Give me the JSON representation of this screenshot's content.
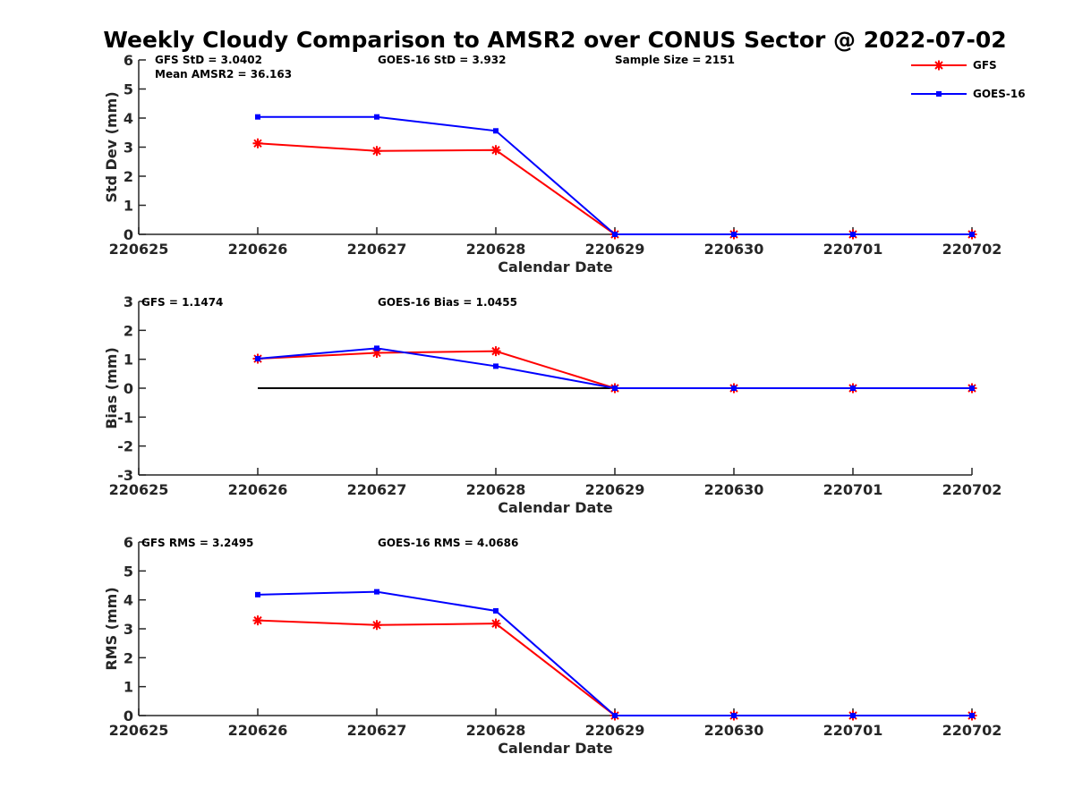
{
  "title": "Weekly Cloudy Comparison to AMSR2 over CONUS Sector @ 2022-07-02",
  "legend": {
    "placement": "top-right",
    "entries": [
      {
        "label": "GFS",
        "color": "#ff0000",
        "marker": "asterisk"
      },
      {
        "label": "GOES-16",
        "color": "#0000ff",
        "marker": "square"
      }
    ]
  },
  "chart_data": [
    {
      "type": "line",
      "x": [
        "220625",
        "220626",
        "220627",
        "220628",
        "220629",
        "220630",
        "220701",
        "220702"
      ],
      "xlabel": "Calendar Date",
      "ylabel": "Std Dev (mm)",
      "ylim": [
        0,
        6
      ],
      "yticks": [
        "0",
        "1",
        "2",
        "3",
        "4",
        "5",
        "6"
      ],
      "annotations": [
        "GFS StD = 3.0402",
        "GOES-16 StD = 3.932",
        "Sample Size = 2151",
        "Mean AMSR2 = 36.163"
      ],
      "series": [
        {
          "name": "GFS",
          "color": "#ff0000",
          "values": [
            null,
            3.13,
            2.87,
            2.9,
            0,
            0,
            0,
            0
          ]
        },
        {
          "name": "GOES-16",
          "color": "#0000ff",
          "values": [
            null,
            4.04,
            4.04,
            3.56,
            0,
            0,
            0,
            0
          ]
        }
      ]
    },
    {
      "type": "line",
      "x": [
        "220625",
        "220626",
        "220627",
        "220628",
        "220629",
        "220630",
        "220701",
        "220702"
      ],
      "xlabel": "Calendar Date",
      "ylabel": "Bias (mm)",
      "ylim": [
        -3,
        3
      ],
      "yticks": [
        "-3",
        "-2",
        "-1",
        "0",
        "1",
        "2",
        "3"
      ],
      "zero_line": true,
      "annotations": [
        "GFS = 1.1474",
        "GOES-16 Bias  = 1.0455"
      ],
      "series": [
        {
          "name": "GFS",
          "color": "#ff0000",
          "values": [
            null,
            1.02,
            1.22,
            1.28,
            0,
            0,
            0,
            0
          ]
        },
        {
          "name": "GOES-16",
          "color": "#0000ff",
          "values": [
            null,
            1.02,
            1.38,
            0.76,
            0,
            0,
            0,
            0
          ]
        }
      ]
    },
    {
      "type": "line",
      "x": [
        "220625",
        "220626",
        "220627",
        "220628",
        "220629",
        "220630",
        "220701",
        "220702"
      ],
      "xlabel": "Calendar Date",
      "ylabel": "RMS (mm)",
      "ylim": [
        0,
        6
      ],
      "yticks": [
        "0",
        "1",
        "2",
        "3",
        "4",
        "5",
        "6"
      ],
      "annotations": [
        "GFS RMS = 3.2495",
        "GOES-16 RMS = 4.0686"
      ],
      "series": [
        {
          "name": "GFS",
          "color": "#ff0000",
          "values": [
            null,
            3.29,
            3.13,
            3.18,
            0,
            0,
            0,
            0
          ]
        },
        {
          "name": "GOES-16",
          "color": "#0000ff",
          "values": [
            null,
            4.18,
            4.28,
            3.62,
            0,
            0,
            0,
            0
          ]
        }
      ]
    }
  ]
}
